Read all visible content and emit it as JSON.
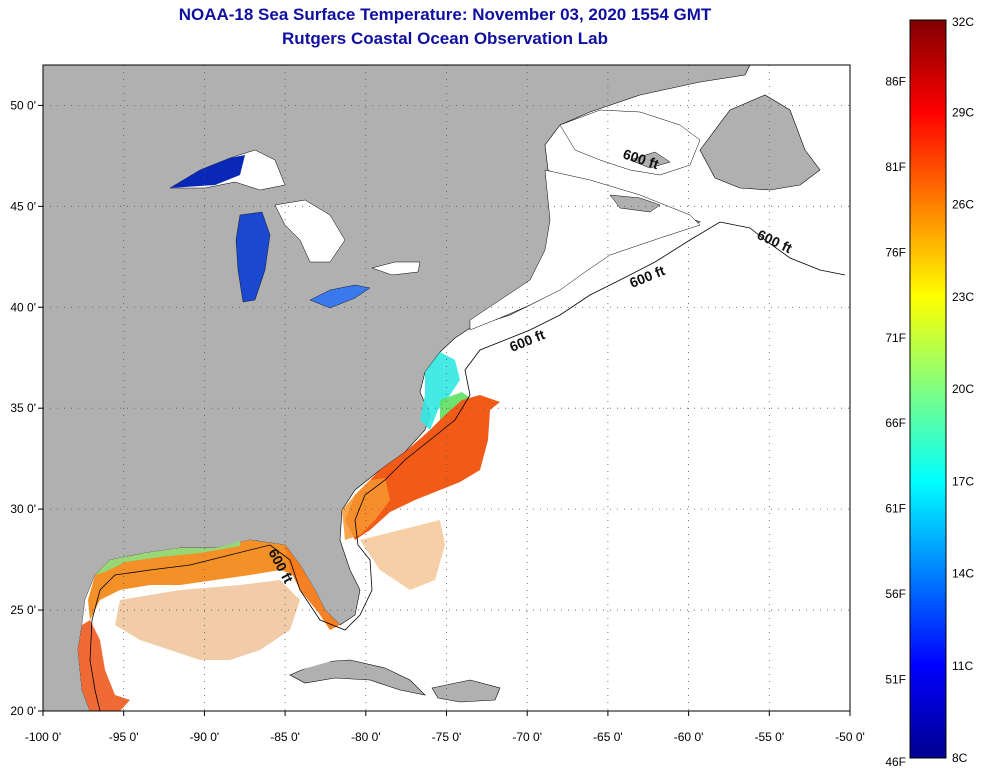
{
  "header": {
    "title": "NOAA-18 Sea Surface Temperature:  November 03, 2020 1554 GMT",
    "subtitle": "Rutgers Coastal Ocean Observation Lab"
  },
  "map": {
    "lon_range": [
      -100,
      -50
    ],
    "lat_range": [
      20,
      52
    ],
    "x_ticks": [
      "-100 0'",
      "-95 0'",
      "-90 0'",
      "-85 0'",
      "-80 0'",
      "-75 0'",
      "-70 0'",
      "-65 0'",
      "-60 0'",
      "-55 0'",
      "-50 0'"
    ],
    "y_ticks": [
      "20 0'",
      "25 0'",
      "30 0'",
      "35 0'",
      "40 0'",
      "45 0'",
      "50 0'"
    ],
    "contour_labels": [
      "600 ft",
      "600 ft",
      "600 ft",
      "600 ft",
      "600 ft"
    ],
    "colors": {
      "land": "#b0b0b0",
      "ocean_no_data": "#ffffff",
      "grid": "#666666"
    }
  },
  "colorbar": {
    "fahrenheit_labels": [
      "86F",
      "81F",
      "76F",
      "71F",
      "66F",
      "61F",
      "56F",
      "51F",
      "46F"
    ],
    "celsius_labels": [
      "32C",
      "29C",
      "26C",
      "23C",
      "20C",
      "17C",
      "14C",
      "11C",
      "8C"
    ],
    "range_c": [
      8,
      32
    ],
    "stops": [
      "#00008f",
      "#0000ff",
      "#0080ff",
      "#00ffff",
      "#80ff80",
      "#ffff00",
      "#ff8000",
      "#ff0000",
      "#800000"
    ]
  }
}
